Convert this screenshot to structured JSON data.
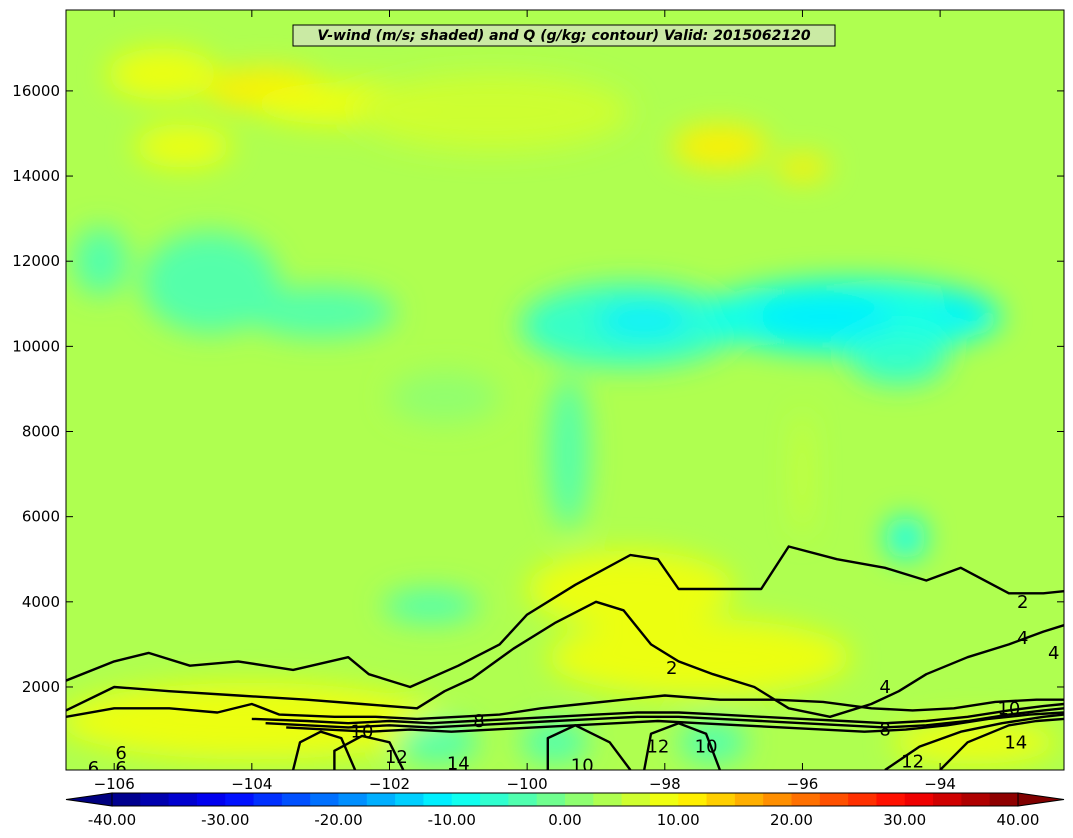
{
  "chart_data": {
    "type": "contourf",
    "title": "V-wind (m/s; shaded) and Q (g/kg; contour) Valid: 2015062120",
    "xlabel": "",
    "ylabel": "",
    "xlim": [
      -106.7,
      -92.2
    ],
    "ylim": [
      50,
      17900
    ],
    "xticks": [
      -106,
      -104,
      -102,
      -100,
      -98,
      -96,
      -94
    ],
    "yticks": [
      2000,
      4000,
      6000,
      8000,
      10000,
      12000,
      14000,
      16000
    ],
    "grid": false,
    "colorbar": {
      "orientation": "horizontal",
      "placement": "bottom",
      "range": [
        -40,
        40
      ],
      "step": 2.5,
      "extend": "both",
      "tick_values": [
        -40,
        -30,
        -20,
        -10,
        0,
        10,
        20,
        30,
        40
      ],
      "tick_labels": [
        "-40.00",
        "-30.00",
        "-20.00",
        "-10.00",
        "0.00",
        "10.00",
        "20.00",
        "30.00",
        "40.00"
      ]
    },
    "shaded_field": {
      "name": "V-wind",
      "units": "m/s",
      "background_value": 3,
      "features": [
        {
          "x": -103.8,
          "y": 16050,
          "rx": 0.9,
          "ry": 500,
          "value": 11
        },
        {
          "x": -105.3,
          "y": 16400,
          "rx": 0.8,
          "ry": 600,
          "value": 8
        },
        {
          "x": -102.6,
          "y": 15700,
          "rx": 1.4,
          "ry": 500,
          "value": 8
        },
        {
          "x": -97.2,
          "y": 14700,
          "rx": 0.7,
          "ry": 500,
          "value": 10
        },
        {
          "x": -96.0,
          "y": 14200,
          "rx": 0.4,
          "ry": 300,
          "value": 11
        },
        {
          "x": -100.5,
          "y": 15500,
          "rx": 2.0,
          "ry": 900,
          "value": 6
        },
        {
          "x": -105.0,
          "y": 14700,
          "rx": 0.7,
          "ry": 500,
          "value": 8
        },
        {
          "x": -104.6,
          "y": 11500,
          "rx": 1.0,
          "ry": 1200,
          "value": -4
        },
        {
          "x": -103.0,
          "y": 10800,
          "rx": 1.1,
          "ry": 600,
          "value": -3
        },
        {
          "x": -98.5,
          "y": 10500,
          "rx": 1.6,
          "ry": 1000,
          "value": -7
        },
        {
          "x": -98.3,
          "y": 10600,
          "rx": 0.7,
          "ry": 400,
          "value": -11
        },
        {
          "x": -95.3,
          "y": 10700,
          "rx": 2.2,
          "ry": 900,
          "value": -8
        },
        {
          "x": -95.7,
          "y": 10700,
          "rx": 1.0,
          "ry": 450,
          "value": -11
        },
        {
          "x": -93.7,
          "y": 10900,
          "rx": 0.3,
          "ry": 300,
          "value": -12
        },
        {
          "x": -94.6,
          "y": 9700,
          "rx": 0.7,
          "ry": 600,
          "value": -7
        },
        {
          "x": -94.5,
          "y": 5500,
          "rx": 0.3,
          "ry": 500,
          "value": -10
        },
        {
          "x": -99.4,
          "y": 7500,
          "rx": 0.3,
          "ry": 1800,
          "value": -3
        },
        {
          "x": -101.2,
          "y": 8800,
          "rx": 0.8,
          "ry": 600,
          "value": 2
        },
        {
          "x": -101.4,
          "y": 3900,
          "rx": 0.7,
          "ry": 400,
          "value": -5
        },
        {
          "x": -98.5,
          "y": 4300,
          "rx": 1.5,
          "ry": 900,
          "value": 9
        },
        {
          "x": -97.5,
          "y": 2700,
          "rx": 2.2,
          "ry": 900,
          "value": 8
        },
        {
          "x": -104.0,
          "y": 1200,
          "rx": 2.8,
          "ry": 900,
          "value": 8
        },
        {
          "x": -101.3,
          "y": 700,
          "rx": 0.6,
          "ry": 500,
          "value": -3
        },
        {
          "x": -99.6,
          "y": 700,
          "rx": 0.5,
          "ry": 500,
          "value": -3
        },
        {
          "x": -97.3,
          "y": 700,
          "rx": 0.5,
          "ry": 500,
          "value": -3
        },
        {
          "x": -93.5,
          "y": 700,
          "rx": 1.2,
          "ry": 500,
          "value": 9
        },
        {
          "x": -96.0,
          "y": 7000,
          "rx": 0.1,
          "ry": 1500,
          "value": 6
        },
        {
          "x": -106.2,
          "y": 12000,
          "rx": 0.4,
          "ry": 800,
          "value": -4
        }
      ]
    },
    "contour_field": {
      "name": "Q",
      "units": "g/kg",
      "levels": [
        2,
        4,
        6,
        8,
        10,
        12,
        14
      ],
      "color": "#000000",
      "labels": [
        {
          "text": "2",
          "x": -92.8,
          "y": 4000
        },
        {
          "text": "4",
          "x": -92.8,
          "y": 3150
        },
        {
          "text": "4",
          "x": -92.35,
          "y": 2800
        },
        {
          "text": "2",
          "x": -97.9,
          "y": 2450
        },
        {
          "text": "4",
          "x": -94.8,
          "y": 2000
        },
        {
          "text": "8",
          "x": -94.8,
          "y": 1000
        },
        {
          "text": "10",
          "x": -102.4,
          "y": 950
        },
        {
          "text": "8",
          "x": -100.7,
          "y": 1200
        },
        {
          "text": "10",
          "x": -93.0,
          "y": 1500
        },
        {
          "text": "10",
          "x": -97.4,
          "y": 600
        },
        {
          "text": "12",
          "x": -98.1,
          "y": 600
        },
        {
          "text": "12",
          "x": -101.9,
          "y": 350
        },
        {
          "text": "12",
          "x": -94.4,
          "y": 250
        },
        {
          "text": "14",
          "x": -92.9,
          "y": 700
        },
        {
          "text": "14",
          "x": -101.0,
          "y": 200
        },
        {
          "text": "10",
          "x": -99.2,
          "y": 150
        },
        {
          "text": "6",
          "x": -105.9,
          "y": 450
        },
        {
          "text": "6",
          "x": -106.3,
          "y": 100
        },
        {
          "text": "6",
          "x": -105.9,
          "y": 100
        }
      ],
      "lines": [
        {
          "level": 2,
          "points": [
            [
              -106.7,
              2150
            ],
            [
              -106.0,
              2600
            ],
            [
              -105.5,
              2800
            ],
            [
              -104.9,
              2500
            ],
            [
              -104.2,
              2600
            ],
            [
              -103.4,
              2400
            ],
            [
              -102.6,
              2700
            ],
            [
              -102.3,
              2300
            ],
            [
              -101.7,
              2000
            ],
            [
              -101.0,
              2500
            ],
            [
              -100.4,
              3000
            ],
            [
              -100.0,
              3700
            ],
            [
              -99.3,
              4400
            ],
            [
              -98.5,
              5100
            ],
            [
              -98.1,
              5000
            ],
            [
              -97.8,
              4300
            ],
            [
              -97.3,
              4300
            ],
            [
              -96.6,
              4300
            ],
            [
              -96.2,
              5300
            ],
            [
              -95.5,
              5000
            ],
            [
              -94.8,
              4800
            ],
            [
              -94.2,
              4500
            ],
            [
              -93.7,
              4800
            ],
            [
              -93.0,
              4200
            ],
            [
              -92.5,
              4200
            ],
            [
              -92.2,
              4250
            ]
          ]
        },
        {
          "level": 4,
          "points": [
            [
              -106.7,
              1450
            ],
            [
              -106.0,
              2000
            ],
            [
              -105.2,
              1900
            ],
            [
              -104.2,
              1800
            ],
            [
              -103.2,
              1700
            ],
            [
              -102.4,
              1600
            ],
            [
              -101.6,
              1500
            ],
            [
              -101.2,
              1900
            ],
            [
              -100.8,
              2200
            ],
            [
              -100.2,
              2900
            ],
            [
              -99.6,
              3500
            ],
            [
              -99.0,
              4000
            ],
            [
              -98.6,
              3800
            ],
            [
              -98.2,
              3000
            ],
            [
              -97.8,
              2600
            ],
            [
              -97.3,
              2300
            ],
            [
              -96.7,
              2000
            ],
            [
              -96.2,
              1500
            ],
            [
              -95.6,
              1300
            ],
            [
              -95.0,
              1600
            ],
            [
              -94.6,
              1900
            ],
            [
              -94.2,
              2300
            ],
            [
              -93.6,
              2700
            ],
            [
              -93.0,
              3000
            ],
            [
              -92.5,
              3300
            ],
            [
              -92.2,
              3450
            ]
          ]
        },
        {
          "level": 6,
          "points": [
            [
              -106.7,
              1300
            ],
            [
              -106.0,
              1500
            ],
            [
              -105.2,
              1500
            ],
            [
              -104.5,
              1400
            ],
            [
              -104.0,
              1600
            ],
            [
              -103.6,
              1350
            ],
            [
              -102.8,
              1300
            ],
            [
              -102.2,
              1300
            ],
            [
              -101.6,
              1250
            ],
            [
              -101.0,
              1300
            ],
            [
              -100.4,
              1350
            ],
            [
              -99.8,
              1500
            ],
            [
              -99.2,
              1600
            ],
            [
              -98.6,
              1700
            ],
            [
              -98.0,
              1800
            ],
            [
              -97.2,
              1700
            ],
            [
              -96.4,
              1700
            ],
            [
              -95.7,
              1650
            ],
            [
              -95.0,
              1500
            ],
            [
              -94.4,
              1450
            ],
            [
              -93.8,
              1500
            ],
            [
              -93.2,
              1650
            ],
            [
              -92.6,
              1700
            ],
            [
              -92.2,
              1700
            ]
          ]
        },
        {
          "level": 8,
          "points": [
            [
              -104.0,
              1250
            ],
            [
              -103.2,
              1200
            ],
            [
              -102.6,
              1150
            ],
            [
              -102.0,
              1200
            ],
            [
              -101.4,
              1150
            ],
            [
              -100.8,
              1200
            ],
            [
              -100.2,
              1250
            ],
            [
              -99.6,
              1300
            ],
            [
              -99.0,
              1350
            ],
            [
              -98.4,
              1400
            ],
            [
              -97.8,
              1400
            ],
            [
              -97.2,
              1350
            ],
            [
              -96.6,
              1300
            ],
            [
              -96.0,
              1250
            ],
            [
              -95.4,
              1200
            ],
            [
              -94.8,
              1150
            ],
            [
              -94.2,
              1200
            ],
            [
              -93.6,
              1300
            ],
            [
              -93.0,
              1450
            ],
            [
              -92.5,
              1550
            ],
            [
              -92.2,
              1600
            ]
          ]
        },
        {
          "level": 10,
          "points": [
            [
              -103.8,
              1150
            ],
            [
              -103.2,
              1100
            ],
            [
              -102.6,
              1050
            ],
            [
              -102.0,
              1100
            ],
            [
              -101.4,
              1050
            ],
            [
              -100.8,
              1100
            ],
            [
              -100.2,
              1150
            ],
            [
              -99.6,
              1200
            ],
            [
              -99.0,
              1250
            ],
            [
              -98.4,
              1300
            ],
            [
              -97.8,
              1300
            ],
            [
              -97.2,
              1250
            ],
            [
              -96.6,
              1200
            ],
            [
              -96.0,
              1150
            ],
            [
              -95.4,
              1100
            ],
            [
              -94.8,
              1050
            ],
            [
              -94.2,
              1100
            ],
            [
              -93.6,
              1200
            ],
            [
              -93.0,
              1350
            ],
            [
              -92.5,
              1450
            ],
            [
              -92.2,
              1500
            ]
          ]
        },
        {
          "level": 12,
          "points": [
            [
              -103.5,
              1050
            ],
            [
              -102.9,
              1000
            ],
            [
              -102.3,
              950
            ],
            [
              -101.7,
              1000
            ],
            [
              -101.1,
              950
            ],
            [
              -100.5,
              1000
            ],
            [
              -99.9,
              1050
            ],
            [
              -99.3,
              1100
            ],
            [
              -98.7,
              1150
            ],
            [
              -98.1,
              1200
            ],
            [
              -97.5,
              1150
            ],
            [
              -96.9,
              1100
            ],
            [
              -96.3,
              1050
            ],
            [
              -95.7,
              1000
            ],
            [
              -95.1,
              950
            ],
            [
              -94.5,
              1000
            ],
            [
              -93.9,
              1100
            ],
            [
              -93.3,
              1250
            ],
            [
              -92.7,
              1350
            ],
            [
              -92.2,
              1400
            ]
          ]
        },
        {
          "level": 10,
          "points": [
            [
              -103.4,
              50
            ],
            [
              -103.3,
              700
            ],
            [
              -103.0,
              950
            ],
            [
              -102.7,
              800
            ],
            [
              -102.5,
              50
            ]
          ]
        },
        {
          "level": 12,
          "points": [
            [
              -102.8,
              50
            ],
            [
              -102.8,
              500
            ],
            [
              -102.4,
              850
            ],
            [
              -102.0,
              700
            ],
            [
              -101.8,
              50
            ]
          ]
        },
        {
          "level": 10,
          "points": [
            [
              -99.7,
              50
            ],
            [
              -99.7,
              800
            ],
            [
              -99.3,
              1100
            ],
            [
              -98.8,
              700
            ],
            [
              -98.5,
              50
            ]
          ]
        },
        {
          "level": 12,
          "points": [
            [
              -98.3,
              50
            ],
            [
              -98.2,
              900
            ],
            [
              -97.8,
              1150
            ],
            [
              -97.4,
              900
            ],
            [
              -97.2,
              50
            ]
          ]
        },
        {
          "level": 14,
          "points": [
            [
              -94.0,
              50
            ],
            [
              -93.6,
              700
            ],
            [
              -93.0,
              1100
            ],
            [
              -92.6,
              1200
            ],
            [
              -92.2,
              1250
            ]
          ]
        },
        {
          "level": 12,
          "points": [
            [
              -94.8,
              50
            ],
            [
              -94.3,
              600
            ],
            [
              -93.7,
              950
            ],
            [
              -93.1,
              1150
            ],
            [
              -92.5,
              1300
            ],
            [
              -92.2,
              1350
            ]
          ]
        }
      ]
    }
  }
}
